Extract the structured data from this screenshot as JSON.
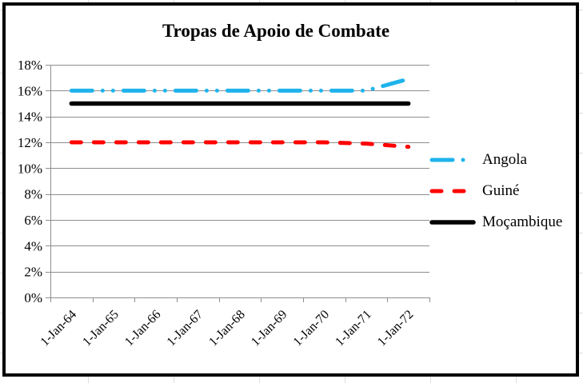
{
  "chart_data": {
    "type": "line",
    "title": "Tropas de Apoio de Combate",
    "categories": [
      "1-Jan-64",
      "1-Jan-65",
      "1-Jan-66",
      "1-Jan-67",
      "1-Jan-68",
      "1-Jan-69",
      "1-Jan-70",
      "1-Jan-71",
      "1-Jan-72"
    ],
    "series": [
      {
        "name": "Angola",
        "color": "#1FB3EC",
        "style": "dash-dot-dot",
        "width": 5,
        "values": [
          16,
          16,
          16,
          16,
          16,
          16,
          16,
          16,
          16.9
        ]
      },
      {
        "name": "Guiné",
        "color": "#FF0000",
        "style": "dash",
        "width": 5,
        "values": [
          12,
          12,
          12,
          12,
          12,
          12,
          12,
          11.9,
          11.65
        ]
      },
      {
        "name": "Moçambique",
        "color": "#000000",
        "style": "solid",
        "width": 5.5,
        "values": [
          15,
          15,
          15,
          15,
          15,
          15,
          15,
          15,
          15
        ]
      }
    ],
    "y_axis": {
      "min": 0,
      "max": 18,
      "step": 2,
      "format": "percent",
      "tick_labels": [
        "0%",
        "2%",
        "4%",
        "6%",
        "8%",
        "10%",
        "12%",
        "14%",
        "16%",
        "18%"
      ]
    },
    "x_axis": {
      "label_rotation_deg": -45
    },
    "grid": true,
    "legend_position": "right",
    "colors": {
      "grid": "#8E8E8E",
      "axis": "#8E8E8E",
      "text": "#000000",
      "frame": "#000000"
    }
  }
}
